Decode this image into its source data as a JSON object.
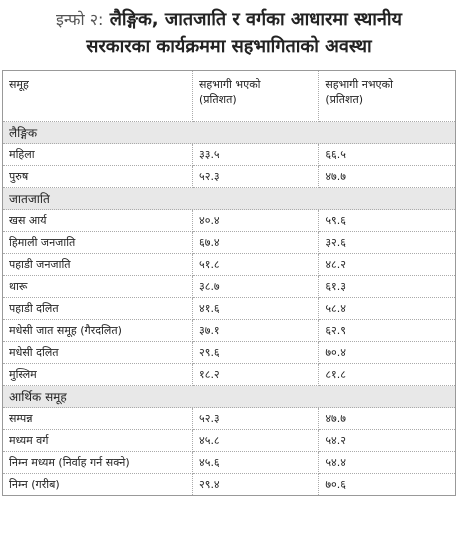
{
  "header": {
    "prefix": "इन्फो २:",
    "title_lines": [
      "लैङ्गिक, जातजाति र वर्गका आधारमा स्थानीय",
      "सरकारका कार्यक्रममा सहभागिताको अवस्था"
    ]
  },
  "table": {
    "columns": [
      {
        "label": "समूह"
      },
      {
        "label": "सहभागी भएको",
        "unit": "(प्रतिशत)"
      },
      {
        "label": "सहभागी नभएको",
        "unit": "(प्रतिशत)"
      }
    ],
    "sections": [
      {
        "name": "लैङ्गिक",
        "rows": [
          [
            "महिला",
            "३३.५",
            "६६.५"
          ],
          [
            "पुरुष",
            "५२.३",
            "४७.७"
          ]
        ]
      },
      {
        "name": "जातजाति",
        "rows": [
          [
            "खस आर्य",
            "४०.४",
            "५९.६"
          ],
          [
            "हिमाली जनजाति",
            "६७.४",
            "३२.६"
          ],
          [
            "पहाडी जनजाति",
            "५१.८",
            "४८.२"
          ],
          [
            "थारू",
            "३८.७",
            "६१.३"
          ],
          [
            "पहाडी दलित",
            "४१.६",
            "५८.४"
          ],
          [
            "मधेसी जात समूह (गैरदलित)",
            "३७.१",
            "६२.९"
          ],
          [
            "मधेसी दलित",
            "२९.६",
            "७०.४"
          ],
          [
            "मुस्लिम",
            "१८.२",
            "८१.८"
          ]
        ]
      },
      {
        "name": "आर्थिक समूह",
        "rows": [
          [
            "सम्पन्न",
            "५२.३",
            "४७.७"
          ],
          [
            "मध्यम वर्ग",
            "४५.८",
            "५४.२"
          ],
          [
            "निम्न मध्यम (निर्वाह गर्न सक्ने)",
            "४५.६",
            "५४.४"
          ],
          [
            "निम्न (गरीब)",
            "२९.४",
            "७०.६"
          ]
        ]
      }
    ]
  }
}
